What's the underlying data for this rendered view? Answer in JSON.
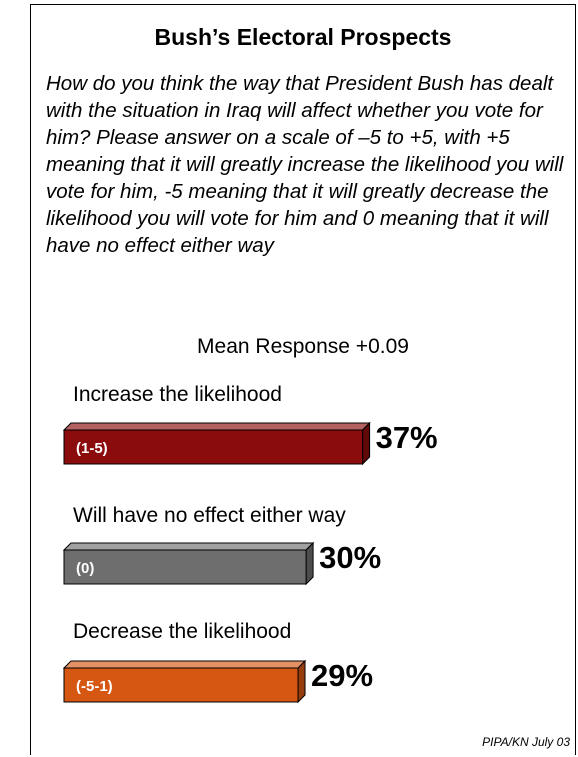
{
  "title": "Bush’s Electoral Prospects",
  "question": "How do you think the way that President Bush has dealt with the situation in Iraq will affect whether you vote for him? Please answer on a scale of –5 to +5, with +5 meaning that it will greatly increase the likelihood you will vote for him, -5 meaning that it will greatly decrease the likelihood you will vote for him and 0 meaning that it will have no effect either way",
  "mean_response": "Mean Response +0.09",
  "source": "PIPA/KN July 03",
  "chart_data": {
    "type": "bar",
    "orientation": "horizontal",
    "categories": [
      "Increase the likelihood",
      "Will have no effect either way",
      "Decrease the likelihood"
    ],
    "codes": [
      "(1-5)",
      "(0)",
      "(-5-1)"
    ],
    "values": [
      37,
      30,
      29
    ],
    "value_labels": [
      "37%",
      "30%",
      "29%"
    ],
    "unit": "%",
    "colors": [
      "#8b0c0c",
      "#6e6e6e",
      "#d65712"
    ],
    "grid": false
  }
}
